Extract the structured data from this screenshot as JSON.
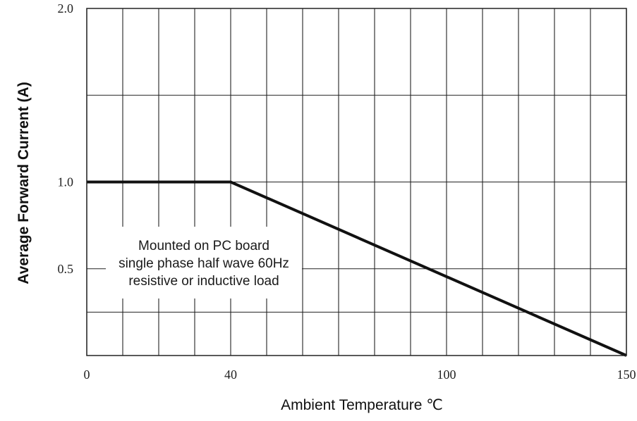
{
  "chart_data": {
    "type": "line",
    "title": "",
    "xlabel": "Ambient Temperature ℃",
    "ylabel": "Average Forward Current (A)",
    "xlim": [
      0,
      150
    ],
    "ylim": [
      0,
      2.0
    ],
    "x_tick_labels": [
      {
        "value": 0,
        "label": "0"
      },
      {
        "value": 40,
        "label": "40"
      },
      {
        "value": 100,
        "label": "100"
      },
      {
        "value": 150,
        "label": "150"
      }
    ],
    "y_tick_labels": [
      {
        "value": 2.0,
        "label": "2.0"
      },
      {
        "value": 1.0,
        "label": "1.0"
      },
      {
        "value": 0.5,
        "label": "0.5"
      }
    ],
    "x_gridlines": [
      0,
      10,
      20,
      30,
      40,
      50,
      60,
      70,
      80,
      90,
      100,
      110,
      120,
      130,
      140,
      150
    ],
    "y_gridlines": [
      0,
      0.25,
      0.5,
      1.0,
      1.5,
      2.0
    ],
    "grid": true,
    "series": [
      {
        "x": [
          0,
          40,
          150
        ],
        "y": [
          1.0,
          1.0,
          0
        ]
      }
    ],
    "annotation": {
      "lines": [
        "Mounted on PC board",
        "single phase half wave 60Hz",
        "resistive or inductive load"
      ]
    },
    "colors": {
      "line": "#111111",
      "grid": "#222222",
      "background": "#ffffff"
    }
  }
}
